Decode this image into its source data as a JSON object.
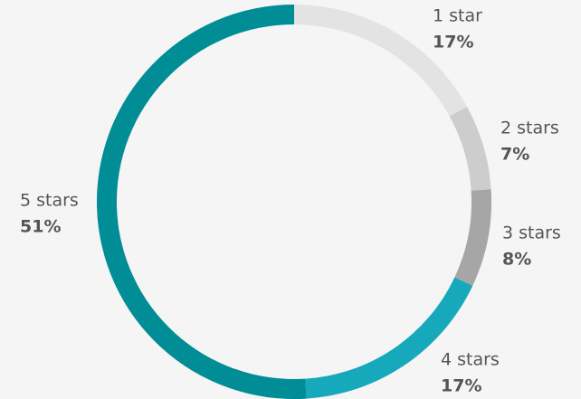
{
  "chart_data": {
    "type": "donut",
    "categories": [
      "1 star",
      "2 stars",
      "3 stars",
      "4 stars",
      "5 stars"
    ],
    "values": [
      17,
      7,
      8,
      17,
      51
    ],
    "value_labels": [
      "17%",
      "7%",
      "8%",
      "17%",
      "51%"
    ],
    "colors": [
      "#e3e3e3",
      "#cdcdcd",
      "#a6a6a6",
      "#15a9bb",
      "#008d96"
    ]
  }
}
